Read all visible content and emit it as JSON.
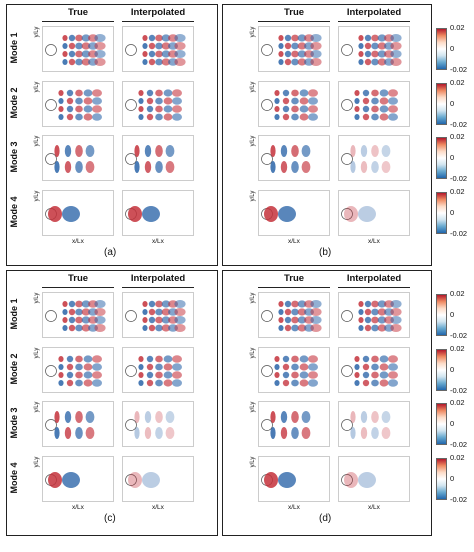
{
  "headers": {
    "true": "True",
    "interpolated": "Interpolated"
  },
  "modes": [
    "Mode 1",
    "Mode 2",
    "Mode 3",
    "Mode 4"
  ],
  "axis": {
    "y": "y/Ly",
    "x": "x/Lx"
  },
  "colorbar": {
    "top": "0.02",
    "mid": "0",
    "bottom": "-0.02",
    "colors": [
      "#b2182b",
      "#ef8a62",
      "#fddbc7",
      "#ffffff",
      "#d1e5f0",
      "#67a9cf",
      "#2166ac"
    ]
  },
  "subfigures": [
    "(a)",
    "(b)",
    "(c)",
    "(d)"
  ]
}
